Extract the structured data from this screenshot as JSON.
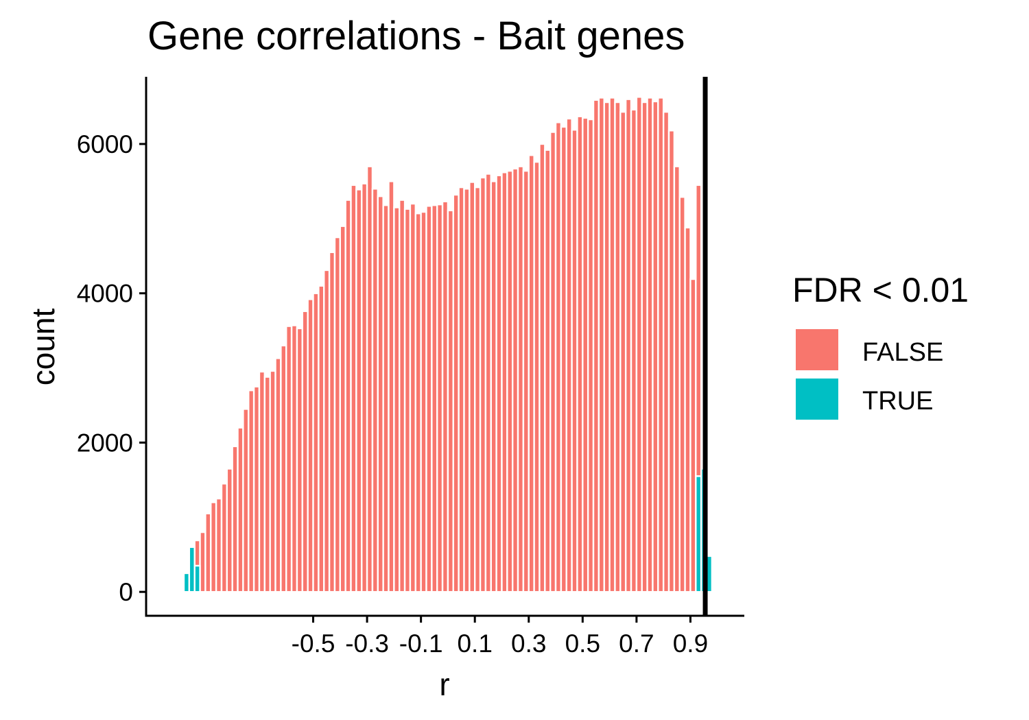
{
  "chart_data": {
    "type": "bar",
    "title": "Gene correlations - Bait genes",
    "xlabel": "r",
    "ylabel": "count",
    "xticks": [
      -0.5,
      -0.3,
      -0.1,
      0.1,
      0.3,
      0.5,
      0.7,
      0.9
    ],
    "xtick_labels": [
      "-0.5",
      "-0.3",
      "-0.1",
      "0.1",
      "0.3",
      "0.5",
      "0.7",
      "0.9"
    ],
    "yticks": [
      0,
      2000,
      4000,
      6000
    ],
    "ytick_labels": [
      "0",
      "2000",
      "4000",
      "6000"
    ],
    "xlim": [
      -1.12,
      1.1
    ],
    "ylim": [
      -320,
      6900
    ],
    "bin_width": 0.02,
    "vline_x": 0.955,
    "grid": false,
    "legend": {
      "title": "FDR < 0.01",
      "placement": "right",
      "entries": [
        {
          "label": "FALSE",
          "color": "#F8766D"
        },
        {
          "label": "TRUE",
          "color": "#00BFC4"
        }
      ]
    },
    "series": [
      {
        "name": "FALSE",
        "color": "#F8766D",
        "x": [
          -0.93,
          -0.91,
          -0.89,
          -0.87,
          -0.85,
          -0.83,
          -0.81,
          -0.79,
          -0.77,
          -0.75,
          -0.73,
          -0.71,
          -0.69,
          -0.67,
          -0.65,
          -0.63,
          -0.61,
          -0.59,
          -0.57,
          -0.55,
          -0.53,
          -0.51,
          -0.49,
          -0.47,
          -0.45,
          -0.43,
          -0.41,
          -0.39,
          -0.37,
          -0.35,
          -0.33,
          -0.31,
          -0.29,
          -0.27,
          -0.25,
          -0.23,
          -0.21,
          -0.19,
          -0.17,
          -0.15,
          -0.13,
          -0.11,
          -0.09,
          -0.07,
          -0.05,
          -0.03,
          -0.01,
          0.01,
          0.03,
          0.05,
          0.07,
          0.09,
          0.11,
          0.13,
          0.15,
          0.17,
          0.19,
          0.21,
          0.23,
          0.25,
          0.27,
          0.29,
          0.31,
          0.33,
          0.35,
          0.37,
          0.39,
          0.41,
          0.43,
          0.45,
          0.47,
          0.49,
          0.51,
          0.53,
          0.55,
          0.57,
          0.59,
          0.61,
          0.63,
          0.65,
          0.67,
          0.69,
          0.71,
          0.73,
          0.75,
          0.77,
          0.79,
          0.81,
          0.83,
          0.85,
          0.87,
          0.89,
          0.91,
          0.93
        ],
        "values": [
          340,
          800,
          1050,
          1200,
          1250,
          1450,
          1650,
          1950,
          2200,
          2450,
          2700,
          2750,
          2950,
          2880,
          2960,
          3130,
          3300,
          3560,
          3570,
          3530,
          3760,
          3920,
          4000,
          4100,
          4310,
          4550,
          4750,
          4900,
          5250,
          5450,
          5390,
          5470,
          5700,
          5400,
          5300,
          5180,
          5500,
          5150,
          5250,
          5130,
          5200,
          5070,
          5090,
          5170,
          5180,
          5190,
          5230,
          5110,
          5320,
          5420,
          5400,
          5490,
          5420,
          5550,
          5600,
          5500,
          5580,
          5620,
          5640,
          5670,
          5700,
          5640,
          5850,
          5760,
          6000,
          5920,
          6160,
          6290,
          6230,
          6340,
          6190,
          6370,
          6350,
          6330,
          6590,
          6620,
          6560,
          6620,
          6560,
          6430,
          6600,
          6460,
          6630,
          6560,
          6620,
          6570,
          6620,
          6430,
          6180,
          5700,
          5290,
          4880,
          4190,
          3900
        ]
      },
      {
        "name": "TRUE",
        "color": "#00BFC4",
        "x": [
          -0.99,
          -0.97,
          -0.95,
          -0.93,
          0.93,
          0.95,
          0.97
        ],
        "values": [
          20,
          250,
          600,
          350,
          1550,
          1650,
          480
        ]
      }
    ]
  }
}
